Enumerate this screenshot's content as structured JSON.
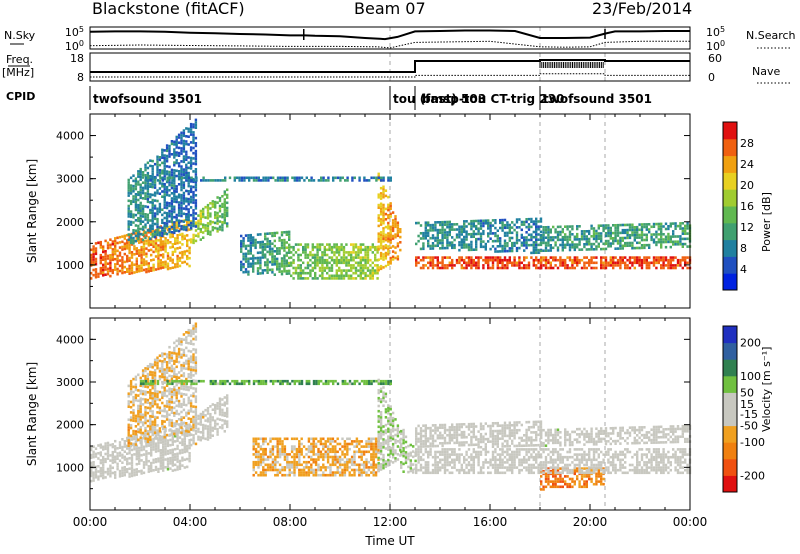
{
  "header": {
    "station": "Blackstone (fitACF)",
    "beam": "Beam 07",
    "date": "23/Feb/2014"
  },
  "left_labels": {
    "nsky": "N.Sky",
    "freq": "Freq.",
    "mhz": "[MHz]",
    "cpid": "CPID"
  },
  "right_labels": {
    "nsearch": "N.Search",
    "nave": "Nave"
  },
  "chart_data": [
    {
      "type": "line",
      "name": "noise-panel",
      "left_ticks": [
        "10^5",
        "10^0"
      ],
      "right_ticks": [
        "10^5",
        "10^0"
      ],
      "series": [
        {
          "name": "N.Sky",
          "x": [
            0,
            1,
            2,
            3,
            4,
            5,
            6,
            7,
            8,
            8.6,
            9,
            10,
            11,
            11.8,
            12.3,
            13,
            14,
            15,
            16,
            17,
            18,
            19,
            20,
            20.6,
            21,
            22,
            23,
            24
          ],
          "y": [
            0.78,
            0.8,
            0.8,
            0.78,
            0.74,
            0.72,
            0.68,
            0.66,
            0.62,
            0.62,
            0.6,
            0.58,
            0.5,
            0.45,
            0.55,
            0.8,
            0.82,
            0.84,
            0.84,
            0.82,
            0.5,
            0.5,
            0.52,
            0.7,
            0.8,
            0.8,
            0.82,
            0.82
          ]
        },
        {
          "name": "N.Search",
          "x": [
            0,
            2,
            4,
            6,
            8,
            10,
            11.5,
            12,
            13,
            16,
            18,
            19,
            20,
            20.6,
            22,
            24
          ],
          "y": [
            0.15,
            0.18,
            0.16,
            0.14,
            0.12,
            0.12,
            0.1,
            0.05,
            0.3,
            0.35,
            0.1,
            0.08,
            0.1,
            0.3,
            0.35,
            0.35
          ]
        }
      ]
    },
    {
      "type": "line",
      "name": "freq-nave-panel",
      "left_ticks": [
        "18",
        "8"
      ],
      "right_ticks": [
        "60",
        "0"
      ],
      "series": [
        {
          "name": "Freq",
          "x": [
            0,
            13,
            13,
            18,
            18,
            20.6,
            20.6,
            24
          ],
          "y": [
            10.5,
            10.5,
            16,
            16,
            16.5,
            16.5,
            16,
            16
          ]
        },
        {
          "name": "Nave",
          "x": [
            0,
            13,
            13,
            18,
            18,
            20.6,
            20.6,
            24
          ],
          "y": [
            8,
            8,
            8.8,
            8.8,
            9.6,
            9.6,
            8.8,
            8.8
          ]
        }
      ]
    },
    {
      "type": "table",
      "name": "cpid-row",
      "segments": [
        {
          "label": "twofsound 3501",
          "start": 0,
          "end": 12
        },
        {
          "label": "tou (fast) 503",
          "start": 12,
          "end": 13
        },
        {
          "label": "bmsp-tou CT-trig 230",
          "start": 13,
          "end": 18
        },
        {
          "label": "twofsound 3501",
          "start": 18,
          "end": 24
        }
      ]
    },
    {
      "type": "heatmap",
      "name": "power-panel",
      "ylabel": "Slant Range [km]",
      "ylim": [
        0,
        4500
      ],
      "yticks": [
        1000,
        2000,
        3000,
        4000
      ],
      "xlim": [
        0,
        24
      ],
      "colorbar": {
        "label": "Power [dB]",
        "min": 0,
        "max": 32,
        "ticks": [
          4,
          8,
          12,
          16,
          20,
          24,
          28
        ],
        "colors": [
          "#0022e0",
          "#2050c0",
          "#2080a0",
          "#40a070",
          "#60b850",
          "#a0cc30",
          "#e8d020",
          "#f0a010",
          "#f06010",
          "#e01010"
        ]
      },
      "bands": [
        {
          "t0": 0,
          "t1": 4,
          "r0": 700,
          "r1": 1000,
          "r2": 1500,
          "r3": 2100,
          "v0": 28,
          "v1": 22
        },
        {
          "t0": 4,
          "t1": 5.5,
          "r0": 1500,
          "r1": 1900,
          "r2": 2100,
          "r3": 2800,
          "v0": 20,
          "v1": 12
        },
        {
          "t0": 1.5,
          "t1": 4.2,
          "r0": 1500,
          "r1": 1900,
          "r2": 3000,
          "r3": 4400,
          "v0": 10,
          "v1": 6
        },
        {
          "t0": 6,
          "t1": 8,
          "r0": 800,
          "r1": 800,
          "r2": 1700,
          "r3": 1800,
          "v0": 8,
          "v1": 14
        },
        {
          "t0": 8,
          "t1": 11.5,
          "r0": 700,
          "r1": 700,
          "r2": 1500,
          "r3": 1500,
          "v0": 14,
          "v1": 18
        },
        {
          "t0": 11.5,
          "t1": 12.4,
          "r0": 900,
          "r1": 1200,
          "r2": 3200,
          "r3": 1800,
          "v0": 22,
          "v1": 26
        },
        {
          "t0": 13,
          "t1": 18,
          "r0": 950,
          "r1": 900,
          "r2": 1200,
          "r3": 1200,
          "v0": 28,
          "v1": 28
        },
        {
          "t0": 13,
          "t1": 18,
          "r0": 1400,
          "r1": 1300,
          "r2": 2000,
          "r3": 2100,
          "v0": 10,
          "v1": 8
        },
        {
          "t0": 18,
          "t1": 24,
          "r0": 900,
          "r1": 900,
          "r2": 1200,
          "r3": 1200,
          "v0": 28,
          "v1": 28
        },
        {
          "t0": 18,
          "t1": 24,
          "r0": 1300,
          "r1": 1400,
          "r2": 1900,
          "r3": 2000,
          "v0": 10,
          "v1": 12
        },
        {
          "t0": 2,
          "t1": 12,
          "r0": 2950,
          "r1": 2950,
          "r2": 3050,
          "r3": 3050,
          "v0": 8,
          "v1": 8
        }
      ]
    },
    {
      "type": "heatmap",
      "name": "velocity-panel",
      "xlabel": "Time UT",
      "ylabel": "Slant Range [km]",
      "ylim": [
        0,
        4500
      ],
      "yticks": [
        1000,
        2000,
        3000,
        4000
      ],
      "xlim": [
        0,
        24
      ],
      "xticks": [
        "00:00",
        "04:00",
        "08:00",
        "12:00",
        "16:00",
        "20:00",
        "00:00"
      ],
      "colorbar": {
        "label": "Velocity [m s⁻¹]",
        "min": -250,
        "max": 250,
        "ticks": [
          200,
          100,
          50,
          15,
          -15,
          -50,
          -100,
          -200
        ],
        "colors": [
          "#e01010",
          "#f05010",
          "#f08010",
          "#f0a020",
          "#c8c8c0",
          "#c8c8c0",
          "#70c040",
          "#308050",
          "#3060a0",
          "#2030c0"
        ]
      },
      "bands": [
        {
          "t0": 0,
          "t1": 4,
          "r0": 700,
          "r1": 1000,
          "r2": 1500,
          "r3": 2100,
          "v0": 0,
          "v1": 10
        },
        {
          "t0": 1.5,
          "t1": 4.2,
          "r0": 1500,
          "r1": 1900,
          "r2": 3000,
          "r3": 4400,
          "v0": -60,
          "v1": -30
        },
        {
          "t0": 4,
          "t1": 5.5,
          "r0": 1500,
          "r1": 1900,
          "r2": 2100,
          "r3": 2800,
          "v0": -10,
          "v1": 0
        },
        {
          "t0": 6.5,
          "t1": 11.5,
          "r0": 800,
          "r1": 800,
          "r2": 1700,
          "r3": 1700,
          "v0": -70,
          "v1": -70
        },
        {
          "t0": 11.5,
          "t1": 12.4,
          "r0": 900,
          "r1": 1200,
          "r2": 3200,
          "r3": 1800,
          "v0": 30,
          "v1": 40
        },
        {
          "t0": 12.4,
          "t1": 13,
          "r0": 900,
          "r1": 900,
          "r2": 2000,
          "r3": 1400,
          "v0": 40,
          "v1": 40
        },
        {
          "t0": 13,
          "t1": 18,
          "r0": 850,
          "r1": 850,
          "r2": 1450,
          "r3": 1450,
          "v0": 0,
          "v1": 0
        },
        {
          "t0": 13,
          "t1": 18,
          "r0": 1500,
          "r1": 1500,
          "r2": 2000,
          "r3": 2100,
          "v0": 0,
          "v1": 0
        },
        {
          "t0": 18,
          "t1": 20.5,
          "r0": 500,
          "r1": 600,
          "r2": 1000,
          "r3": 1000,
          "v0": -150,
          "v1": -100
        },
        {
          "t0": 18,
          "t1": 24,
          "r0": 900,
          "r1": 900,
          "r2": 1450,
          "r3": 1450,
          "v0": 0,
          "v1": 0
        },
        {
          "t0": 18,
          "t1": 24,
          "r0": 1500,
          "r1": 1600,
          "r2": 1900,
          "r3": 2000,
          "v0": 10,
          "v1": 0
        },
        {
          "t0": 2,
          "t1": 12,
          "r0": 2950,
          "r1": 2950,
          "r2": 3050,
          "r3": 3050,
          "v0": 90,
          "v1": 90
        }
      ]
    }
  ]
}
